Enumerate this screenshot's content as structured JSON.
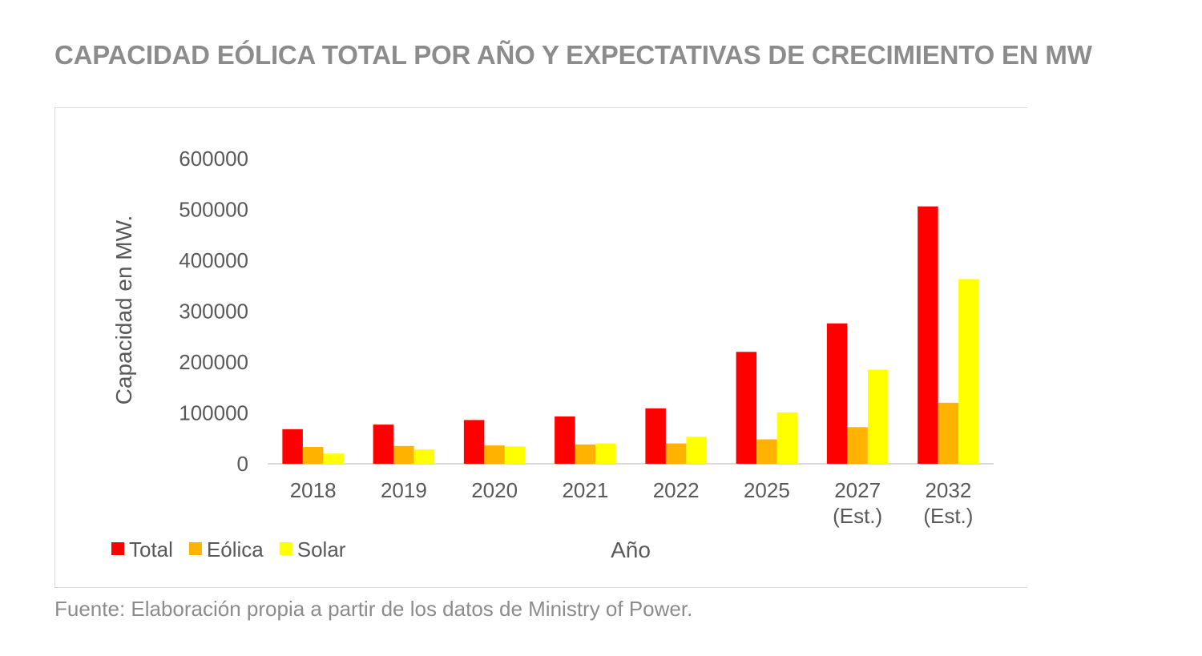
{
  "page": {
    "title": "CAPACIDAD EÓLICA TOTAL POR AÑO Y EXPECTATIVAS DE CRECIMIENTO EN MW",
    "source": "Fuente: Elaboración propia a partir de los datos de Ministry of Power."
  },
  "chart_data": {
    "type": "bar",
    "title": "",
    "xlabel": "Año",
    "ylabel": "Capacidad en MW.",
    "categories": [
      [
        "2018"
      ],
      [
        "2019"
      ],
      [
        "2020"
      ],
      [
        "2021"
      ],
      [
        "2022"
      ],
      [
        "2025"
      ],
      [
        "2027",
        "(Est.)"
      ],
      [
        "2032",
        "(Est.)"
      ]
    ],
    "ylim": [
      0,
      600000
    ],
    "yticks": [
      0,
      100000,
      200000,
      300000,
      400000,
      500000,
      600000
    ],
    "ytick_labels": [
      "0",
      "100000",
      "200000",
      "300000",
      "400000",
      "500000",
      "600000"
    ],
    "grid": false,
    "legend_position": "bottom-left",
    "series": [
      {
        "name": "Total",
        "color": "#ff0000",
        "values": [
          68000,
          77000,
          86000,
          93000,
          109000,
          220000,
          276000,
          506000
        ]
      },
      {
        "name": "Eólica",
        "color": "#ffb300",
        "values": [
          33000,
          35000,
          36000,
          38000,
          40000,
          48000,
          72000,
          120000
        ]
      },
      {
        "name": "Solar",
        "color": "#ffff00",
        "values": [
          20000,
          28000,
          34000,
          40000,
          53000,
          101000,
          185000,
          363000
        ]
      }
    ]
  }
}
